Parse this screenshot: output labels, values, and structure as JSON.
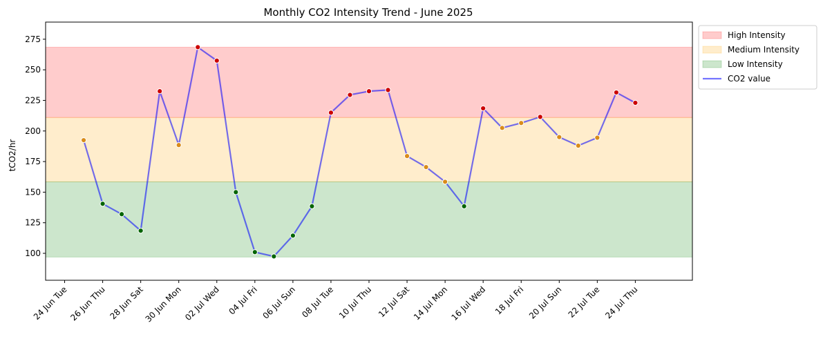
{
  "chart_data": {
    "type": "line",
    "title": "Monthly CO2 Intensity Trend - June 2025",
    "xlabel": "",
    "ylabel": "tCO2/hr",
    "ylim": [
      78,
      289
    ],
    "yticks": [
      100,
      125,
      150,
      175,
      200,
      225,
      250,
      275
    ],
    "xlim": [
      "2025-06-23",
      "2025-07-27"
    ],
    "xticks": [
      {
        "date": "2025-06-24",
        "label": "24 Jun Tue"
      },
      {
        "date": "2025-06-26",
        "label": "26 Jun Thu"
      },
      {
        "date": "2025-06-28",
        "label": "28 Jun Sat"
      },
      {
        "date": "2025-06-30",
        "label": "30 Jun Mon"
      },
      {
        "date": "2025-07-02",
        "label": "02 Jul Wed"
      },
      {
        "date": "2025-07-04",
        "label": "04 Jul Fri"
      },
      {
        "date": "2025-07-06",
        "label": "06 Jul Sun"
      },
      {
        "date": "2025-07-08",
        "label": "08 Jul Tue"
      },
      {
        "date": "2025-07-10",
        "label": "10 Jul Thu"
      },
      {
        "date": "2025-07-12",
        "label": "12 Jul Sat"
      },
      {
        "date": "2025-07-14",
        "label": "14 Jul Mon"
      },
      {
        "date": "2025-07-16",
        "label": "16 Jul Wed"
      },
      {
        "date": "2025-07-18",
        "label": "18 Jul Fri"
      },
      {
        "date": "2025-07-20",
        "label": "20 Jul Sun"
      },
      {
        "date": "2025-07-22",
        "label": "22 Jul Tue"
      },
      {
        "date": "2025-07-24",
        "label": "24 Jul Thu"
      }
    ],
    "bands": [
      {
        "name": "High Intensity",
        "range": [
          211,
          268.5
        ],
        "color": "#ff0000"
      },
      {
        "name": "Medium Intensity",
        "range": [
          158.5,
          211
        ],
        "color": "#ffa500"
      },
      {
        "name": "Low Intensity",
        "range": [
          97,
          158.5
        ],
        "color": "#008000"
      }
    ],
    "series": [
      {
        "name": "CO2 value",
        "color": "#0000ff",
        "x": [
          "2025-06-25",
          "2025-06-26",
          "2025-06-27",
          "2025-06-28",
          "2025-06-29",
          "2025-06-30",
          "2025-07-01",
          "2025-07-02",
          "2025-07-03",
          "2025-07-04",
          "2025-07-05",
          "2025-07-06",
          "2025-07-07",
          "2025-07-08",
          "2025-07-09",
          "2025-07-10",
          "2025-07-11",
          "2025-07-12",
          "2025-07-13",
          "2025-07-14",
          "2025-07-15",
          "2025-07-16",
          "2025-07-17",
          "2025-07-18",
          "2025-07-19",
          "2025-07-20",
          "2025-07-21",
          "2025-07-22",
          "2025-07-23",
          "2025-07-24"
        ],
        "values": [
          192.5,
          140.5,
          132,
          118.5,
          232.5,
          188.5,
          268.5,
          257.5,
          150,
          101,
          97.5,
          114.5,
          138.5,
          215,
          229.5,
          232.5,
          233.5,
          179.5,
          170.5,
          158.5,
          138.5,
          218.5,
          202.5,
          206.5,
          211.5,
          195,
          188,
          194.5,
          231.5,
          223
        ]
      }
    ],
    "marker_colors": {
      "High": "#cc0000",
      "Medium": "#d98c1a",
      "Low": "#006400"
    },
    "grid": false,
    "legend": "outside-top-right",
    "legend_entries": [
      {
        "label": "High Intensity",
        "kind": "patch",
        "color": "#ff0000"
      },
      {
        "label": "Medium Intensity",
        "kind": "patch",
        "color": "#ffa500"
      },
      {
        "label": "Low Intensity",
        "kind": "patch",
        "color": "#008000"
      },
      {
        "label": "CO2 value",
        "kind": "line",
        "color": "#0000ff"
      }
    ]
  }
}
